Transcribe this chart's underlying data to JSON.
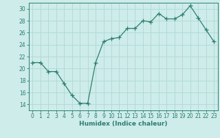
{
  "x": [
    0,
    1,
    2,
    3,
    4,
    5,
    6,
    7,
    8,
    9,
    10,
    11,
    12,
    13,
    14,
    15,
    16,
    17,
    18,
    19,
    20,
    21,
    22,
    23
  ],
  "y": [
    21,
    21,
    19.5,
    19.5,
    17.5,
    15.5,
    14.2,
    14.2,
    21,
    24.5,
    25,
    25.2,
    26.7,
    26.7,
    28,
    27.8,
    29.2,
    28.3,
    28.3,
    29,
    30.5,
    28.5,
    26.5,
    24.5
  ],
  "line_color": "#2d7d6e",
  "marker": "+",
  "marker_size": 4,
  "bg_color": "#cdecea",
  "grid_color": "#afd8d4",
  "xlabel": "Humidex (Indice chaleur)",
  "ylim": [
    13,
    31
  ],
  "xlim": [
    -0.5,
    23.5
  ],
  "yticks": [
    14,
    16,
    18,
    20,
    22,
    24,
    26,
    28,
    30
  ],
  "xticks": [
    0,
    1,
    2,
    3,
    4,
    5,
    6,
    7,
    8,
    9,
    10,
    11,
    12,
    13,
    14,
    15,
    16,
    17,
    18,
    19,
    20,
    21,
    22,
    23
  ]
}
